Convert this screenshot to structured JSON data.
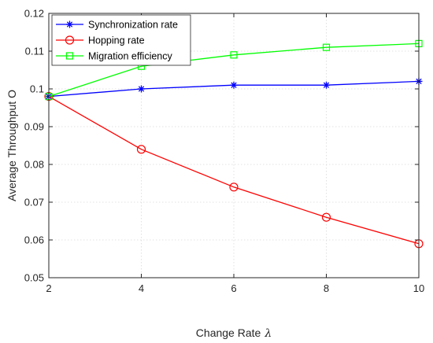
{
  "chart_data": {
    "type": "line",
    "xlabel": "Change Rate",
    "xlabel_symbol": "λ",
    "ylabel": "Average Throughput O",
    "xlim": [
      2,
      10
    ],
    "ylim": [
      0.05,
      0.12
    ],
    "x_ticks": [
      2,
      4,
      6,
      8,
      10
    ],
    "x_tick_labels": [
      "2",
      "4",
      "6",
      "8",
      "10"
    ],
    "y_ticks": [
      0.05,
      0.06,
      0.07,
      0.08,
      0.09,
      0.1,
      0.11,
      0.12
    ],
    "y_tick_labels": [
      "0.05",
      "0.06",
      "0.07",
      "0.08",
      "0.09",
      "0.1",
      "0.11",
      "0.12"
    ],
    "grid": true,
    "legend_position": "top-left",
    "x": [
      2,
      4,
      6,
      8,
      10
    ],
    "series": [
      {
        "name": "Synchronization rate",
        "color": "#0000ff",
        "marker": "asterisk",
        "values": [
          0.098,
          0.1,
          0.101,
          0.101,
          0.102
        ]
      },
      {
        "name": "Hopping rate",
        "color": "#ff0000",
        "marker": "circle",
        "values": [
          0.098,
          0.084,
          0.074,
          0.066,
          0.059
        ]
      },
      {
        "name": "Migration efficiency",
        "color": "#00ff00",
        "marker": "square",
        "values": [
          0.098,
          0.106,
          0.109,
          0.111,
          0.112
        ]
      }
    ]
  }
}
